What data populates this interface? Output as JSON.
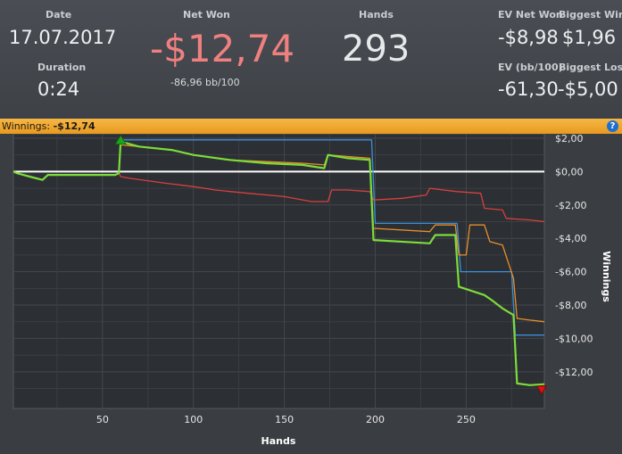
{
  "stats": {
    "date_label": "Date",
    "date_value": "17.07.2017",
    "duration_label": "Duration",
    "duration_value": "0:24",
    "net_won_label": "Net Won",
    "net_won_value": "-$12,74",
    "net_won_sub": "-86,96 bb/100",
    "hands_label": "Hands",
    "hands_value": "293",
    "ev_net_won_label": "EV Net Won",
    "ev_net_won_value": "-$8,98",
    "biggest_win_label": "Biggest Win",
    "biggest_win_value": "$1,96",
    "ev_bb_label": "EV (bb/100)",
    "ev_bb_value": "-61,30",
    "biggest_loss_label": "Biggest Loss",
    "biggest_loss_value": "-$5,00"
  },
  "banner": {
    "label": "Winnings:",
    "value": "-$12,74",
    "help_icon": "?"
  },
  "colors": {
    "net_won_value": "#f08080",
    "winnings": "#7cdc3a",
    "ev": "#e8902a",
    "showdown": "#3a8fd8",
    "non_showdown": "#d84040",
    "zero_line": "#ffffff"
  },
  "chart_data": {
    "type": "line",
    "xlabel": "Hands",
    "ylabel": "Winnings",
    "xlim": [
      1,
      293
    ],
    "ylim": [
      -14.2,
      2.8
    ],
    "x_ticks": [
      50,
      100,
      150,
      200,
      250
    ],
    "x_tick_labels": [
      "50",
      "100",
      "150",
      "200",
      "250"
    ],
    "y_ticks": [
      2,
      0,
      -2,
      -4,
      -6,
      -8,
      -10,
      -12
    ],
    "y_tick_labels": [
      "$2,00",
      "$0,00",
      "-$2,00",
      "-$4,00",
      "-$6,00",
      "-$8,00",
      "-$10,00",
      "-$12,00"
    ],
    "grid": true,
    "series": [
      {
        "color": "#3a8fd8",
        "points": [
          [
            1,
            0
          ],
          [
            3,
            -0.1
          ],
          [
            10,
            -0.3
          ],
          [
            17,
            -0.5
          ],
          [
            20,
            -0.2
          ],
          [
            35,
            -0.2
          ],
          [
            52,
            -0.2
          ],
          [
            57,
            -0.2
          ],
          [
            59,
            -0.1
          ],
          [
            60,
            1.9
          ],
          [
            198,
            1.9
          ],
          [
            200,
            -3.1
          ],
          [
            245,
            -3.1
          ],
          [
            247,
            -6.0
          ],
          [
            275,
            -6.0
          ],
          [
            277,
            -9.8
          ],
          [
            293,
            -9.8
          ]
        ]
      },
      {
        "color": "#e8902a",
        "points": [
          [
            1,
            0
          ],
          [
            3,
            -0.1
          ],
          [
            10,
            -0.3
          ],
          [
            17,
            -0.5
          ],
          [
            20,
            -0.2
          ],
          [
            35,
            -0.2
          ],
          [
            52,
            -0.2
          ],
          [
            57,
            -0.2
          ],
          [
            59,
            -0.1
          ],
          [
            60,
            1.6
          ],
          [
            70,
            1.5
          ],
          [
            88,
            1.3
          ],
          [
            100,
            1.0
          ],
          [
            120,
            0.7
          ],
          [
            140,
            0.6
          ],
          [
            160,
            0.5
          ],
          [
            172,
            0.4
          ],
          [
            174,
            1.0
          ],
          [
            185,
            0.9
          ],
          [
            197,
            0.8
          ],
          [
            199,
            -3.4
          ],
          [
            230,
            -3.6
          ],
          [
            233,
            -3.2
          ],
          [
            244,
            -3.2
          ],
          [
            246,
            -5.0
          ],
          [
            250,
            -5.0
          ],
          [
            252,
            -3.2
          ],
          [
            260,
            -3.2
          ],
          [
            263,
            -4.2
          ],
          [
            270,
            -4.4
          ],
          [
            276,
            -6.4
          ],
          [
            278,
            -8.8
          ],
          [
            285,
            -8.9
          ],
          [
            293,
            -9.0
          ]
        ]
      },
      {
        "color": "#d84040",
        "points": [
          [
            1,
            0
          ],
          [
            3,
            -0.1
          ],
          [
            10,
            -0.3
          ],
          [
            17,
            -0.5
          ],
          [
            20,
            -0.2
          ],
          [
            35,
            -0.2
          ],
          [
            52,
            -0.2
          ],
          [
            57,
            -0.2
          ],
          [
            59,
            -0.1
          ],
          [
            60,
            -0.3
          ],
          [
            65,
            -0.4
          ],
          [
            85,
            -0.7
          ],
          [
            100,
            -0.9
          ],
          [
            112,
            -1.1
          ],
          [
            130,
            -1.3
          ],
          [
            150,
            -1.5
          ],
          [
            165,
            -1.8
          ],
          [
            174,
            -1.8
          ],
          [
            176,
            -1.1
          ],
          [
            185,
            -1.1
          ],
          [
            197,
            -1.2
          ],
          [
            199,
            -1.7
          ],
          [
            215,
            -1.6
          ],
          [
            228,
            -1.4
          ],
          [
            230,
            -1.0
          ],
          [
            245,
            -1.2
          ],
          [
            258,
            -1.3
          ],
          [
            260,
            -2.2
          ],
          [
            270,
            -2.3
          ],
          [
            272,
            -2.8
          ],
          [
            285,
            -2.9
          ],
          [
            293,
            -3.0
          ]
        ]
      },
      {
        "color": "#7cdc3a",
        "points": [
          [
            1,
            0
          ],
          [
            3,
            -0.1
          ],
          [
            10,
            -0.3
          ],
          [
            17,
            -0.5
          ],
          [
            20,
            -0.2
          ],
          [
            35,
            -0.2
          ],
          [
            52,
            -0.2
          ],
          [
            57,
            -0.2
          ],
          [
            59,
            -0.1
          ],
          [
            60,
            1.8
          ],
          [
            70,
            1.5
          ],
          [
            88,
            1.3
          ],
          [
            100,
            1.0
          ],
          [
            120,
            0.7
          ],
          [
            140,
            0.5
          ],
          [
            160,
            0.4
          ],
          [
            172,
            0.2
          ],
          [
            174,
            1.0
          ],
          [
            185,
            0.8
          ],
          [
            197,
            0.7
          ],
          [
            199,
            -4.1
          ],
          [
            230,
            -4.3
          ],
          [
            233,
            -3.8
          ],
          [
            244,
            -3.8
          ],
          [
            246,
            -6.9
          ],
          [
            260,
            -7.4
          ],
          [
            264,
            -7.7
          ],
          [
            270,
            -8.2
          ],
          [
            276,
            -8.6
          ],
          [
            278,
            -12.7
          ],
          [
            285,
            -12.8
          ],
          [
            293,
            -12.74
          ]
        ]
      }
    ]
  }
}
